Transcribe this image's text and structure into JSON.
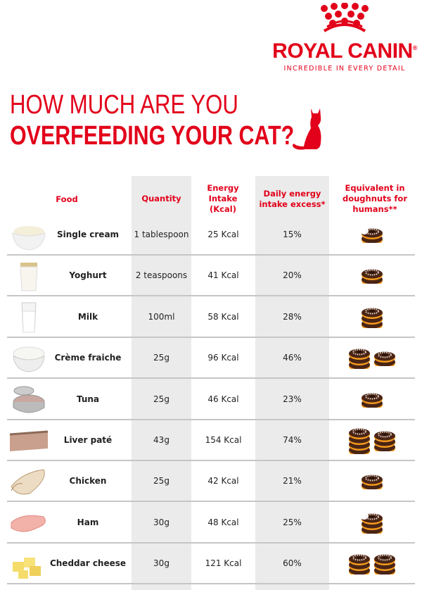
{
  "brand": {
    "name": "ROYAL CANIN",
    "registered": "®",
    "tagline": "INCREDIBLE IN EVERY DETAIL",
    "color": "#e2001a"
  },
  "title": {
    "line1": "HOW MUCH ARE YOU",
    "line2": "OVERFEEDING YOUR CAT?",
    "icon": "cat-silhouette-icon"
  },
  "table": {
    "headers": {
      "food": "Food",
      "quantity": "Quantity",
      "energy": "Energy Intake (Kcal)",
      "excess": "Daily energy intake excess*",
      "doughnuts": "Equivalent in doughnuts for humans**"
    },
    "rows": [
      {
        "food": "Single cream",
        "quantity": "1 tablespoon",
        "energy": "25 Kcal",
        "excess": "15%",
        "doughnuts": 1.5,
        "image": "cream-bowl"
      },
      {
        "food": "Yoghurt",
        "quantity": "2 teaspoons",
        "energy": "41 Kcal",
        "excess": "20%",
        "doughnuts": 2,
        "image": "yoghurt-pot"
      },
      {
        "food": "Milk",
        "quantity": "100ml",
        "energy": "58 Kcal",
        "excess": "28%",
        "doughnuts": 3,
        "image": "milk-glass"
      },
      {
        "food": "Crème fraiche",
        "quantity": "25g",
        "energy": "96 Kcal",
        "excess": "46%",
        "doughnuts": 5,
        "image": "creme-bowl"
      },
      {
        "food": "Tuna",
        "quantity": "25g",
        "energy": "46 Kcal",
        "excess": "23%",
        "doughnuts": 2,
        "image": "tuna-can"
      },
      {
        "food": "Liver paté",
        "quantity": "43g",
        "energy": "154 Kcal",
        "excess": "74%",
        "doughnuts": 7,
        "image": "pate-slice"
      },
      {
        "food": "Chicken",
        "quantity": "25g",
        "energy": "42 Kcal",
        "excess": "21%",
        "doughnuts": 2,
        "image": "chicken-slices"
      },
      {
        "food": "Ham",
        "quantity": "30g",
        "energy": "48 Kcal",
        "excess": "25%",
        "doughnuts": 2.5,
        "image": "ham-slice"
      },
      {
        "food": "Cheddar cheese",
        "quantity": "30g",
        "energy": "121 Kcal",
        "excess": "60%",
        "doughnuts": 6,
        "image": "cheese-cubes"
      }
    ]
  }
}
